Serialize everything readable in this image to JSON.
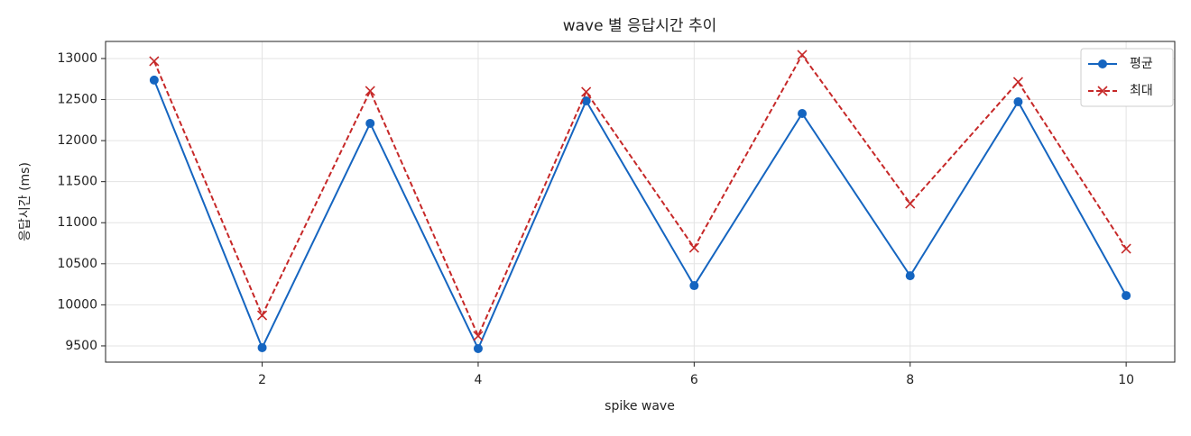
{
  "chart_data": {
    "type": "line",
    "title": "wave 별 응답시간 추이",
    "xlabel": "spike wave",
    "ylabel": "응답시간 (ms)",
    "x": [
      1,
      2,
      3,
      4,
      5,
      6,
      7,
      8,
      9,
      10
    ],
    "series": [
      {
        "name": "평균",
        "color": "#1565c0",
        "marker": "o",
        "linestyle": "solid",
        "values": [
          12737,
          9478,
          12210,
          9467,
          12484,
          10234,
          12330,
          10354,
          12473,
          10113
        ]
      },
      {
        "name": "최대",
        "color": "#c62828",
        "marker": "x",
        "linestyle": "dashed",
        "values": [
          12967,
          9872,
          12605,
          9621,
          12594,
          10695,
          13044,
          11233,
          12715,
          10684
        ]
      }
    ],
    "xlim": [
      0.55,
      10.45
    ],
    "ylim": [
      9302,
      13208
    ],
    "xticks": [
      2,
      4,
      6,
      8,
      10
    ],
    "yticks": [
      9500,
      10000,
      10500,
      11000,
      11500,
      12000,
      12500,
      13000
    ],
    "grid": true,
    "legend": "upper right"
  }
}
